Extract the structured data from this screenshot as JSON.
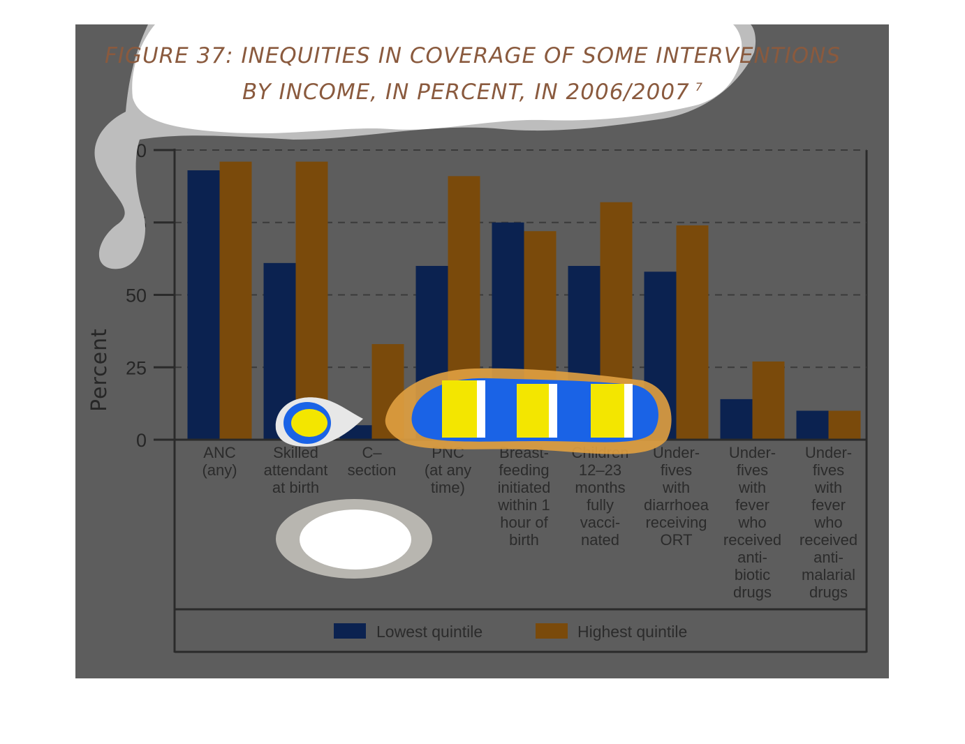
{
  "chart_data": {
    "type": "bar",
    "title": "FIGURE 37: INEQUITIES IN COVERAGE OF SOME INTERVENTIONS",
    "subtitle": "BY INCOME, IN PERCENT, IN 2006/2007",
    "title_superscript": "7",
    "ylabel": "Percent",
    "xlabel": "",
    "ylim": [
      0,
      100
    ],
    "yticks": [
      "0",
      "25",
      "50",
      "75",
      "100"
    ],
    "grid": true,
    "legend_position": "bottom",
    "categories": [
      [
        "ANC",
        "(any)"
      ],
      [
        "Skilled",
        "attendant",
        "at birth"
      ],
      [
        "C–",
        "section"
      ],
      [
        "PNC",
        "(at any",
        "time)"
      ],
      [
        "Breast-",
        "feeding",
        "initiated",
        "within 1",
        "hour of",
        "birth"
      ],
      [
        "Children",
        "12–23",
        "months",
        "fully",
        "vacci-",
        "nated"
      ],
      [
        "Under-",
        "fives",
        "with",
        "diarrhoea",
        "receiving",
        "ORT"
      ],
      [
        "Under-",
        "fives",
        "with",
        "fever",
        "who",
        "received",
        "anti-",
        "biotic",
        "drugs"
      ],
      [
        "Under-",
        "fives",
        "with",
        "fever",
        "who",
        "received",
        "anti-",
        "malarial",
        "drugs"
      ]
    ],
    "series": [
      {
        "name": "Lowest quintile",
        "color": "#0b2250",
        "values": [
          93,
          61,
          5,
          60,
          75,
          60,
          58,
          14,
          10
        ]
      },
      {
        "name": "Highest quintile",
        "color": "#7a4a0b",
        "values": [
          96,
          96,
          33,
          91,
          72,
          82,
          74,
          27,
          10
        ]
      }
    ]
  }
}
